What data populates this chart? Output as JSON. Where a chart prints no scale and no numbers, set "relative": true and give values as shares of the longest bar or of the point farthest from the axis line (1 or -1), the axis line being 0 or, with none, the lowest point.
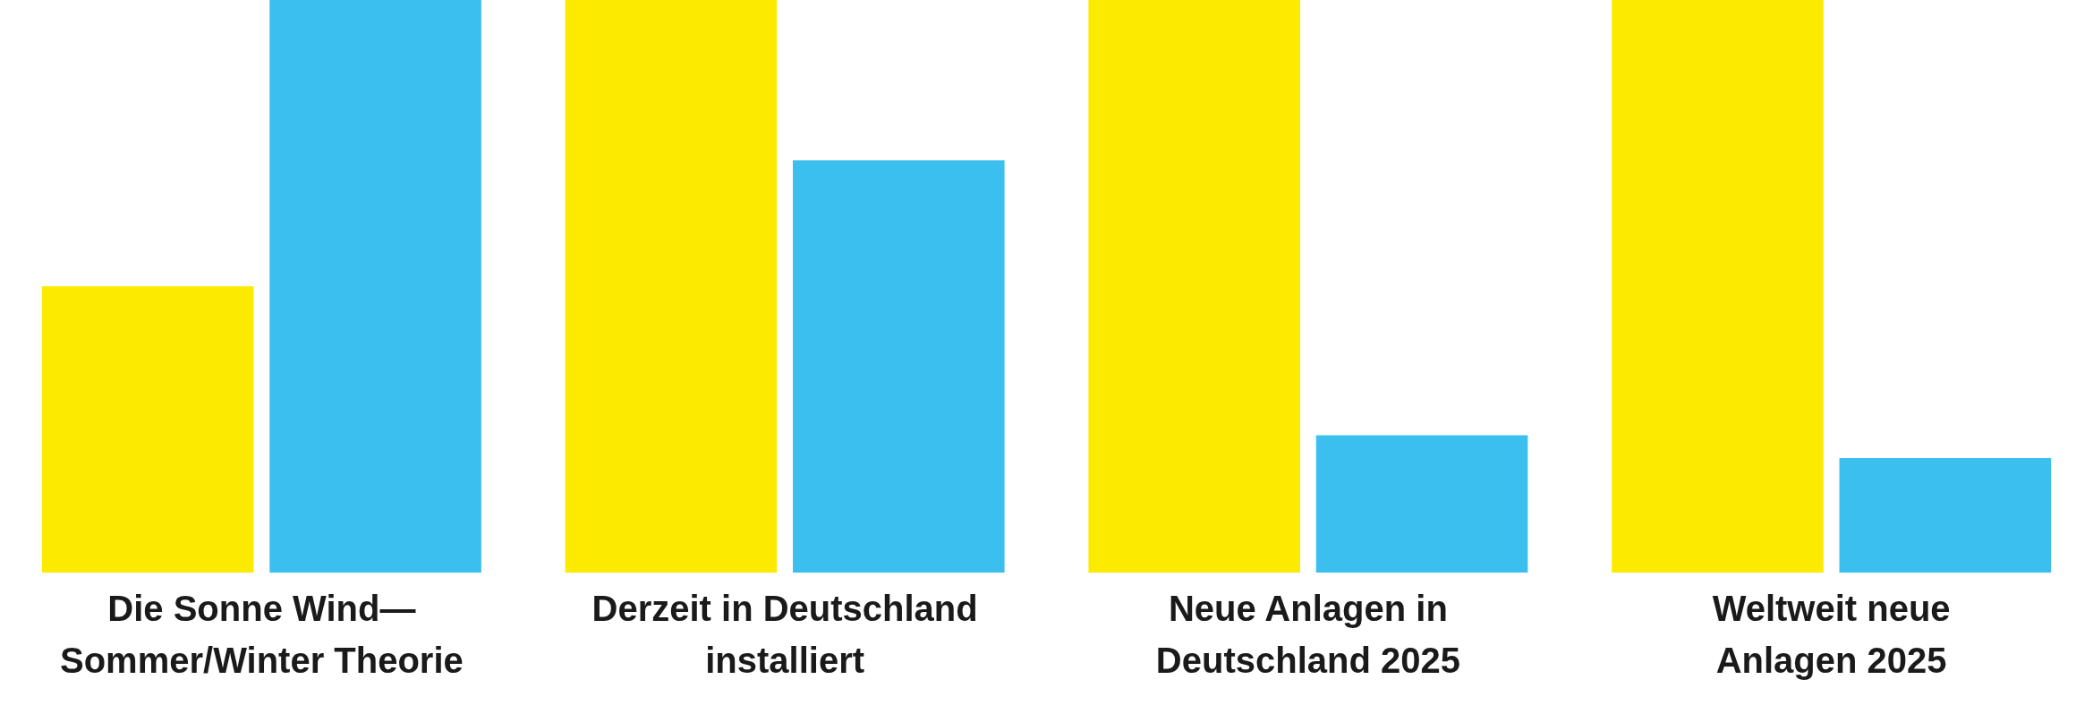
{
  "chart_data": {
    "type": "bar",
    "relative": true,
    "categories": [
      "Die Sonne Wind—\nSommer/Winter Theorie",
      "Derzeit in Deutschland\ninstalliert",
      "Neue Anlagen in\nDeutschland 2025",
      "Weltweit neue\nAnlagen 2025"
    ],
    "series": [
      {
        "color": "#fcea00",
        "values": [
          0.5,
          1,
          1,
          1
        ]
      },
      {
        "color": "#3bbfee",
        "values": [
          1,
          0.72,
          0.24,
          0.2
        ]
      }
    ],
    "grid": false,
    "legend": false
  }
}
